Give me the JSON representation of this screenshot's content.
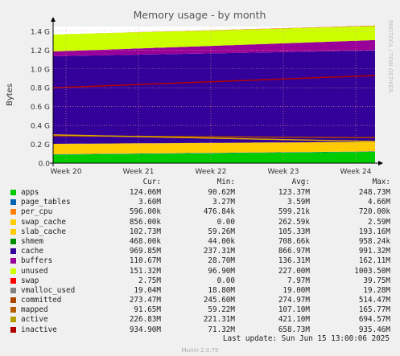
{
  "chart_data": {
    "type": "area",
    "title": "Memory usage - by month",
    "ylabel": "Bytes",
    "watermark": "RRDTOOL / TOBI OETIKER",
    "x": [
      "Week 20",
      "Week 21",
      "Week 22",
      "Week 23",
      "Week 24"
    ],
    "yticks": [
      "0.0",
      "0.2 G",
      "0.4 G",
      "0.6 G",
      "0.8 G",
      "1.0 G",
      "1.2 G",
      "1.4 G"
    ],
    "ylim": [
      0,
      1.45
    ],
    "grid": true,
    "unit": "G",
    "stacked_series": [
      {
        "name": "apps",
        "color": "#00cc00",
        "start": 0.09,
        "end": 0.12
      },
      {
        "name": "page_tables",
        "color": "#0066b3",
        "start": 0.004,
        "end": 0.004
      },
      {
        "name": "per_cpu",
        "color": "#ff8000",
        "start": 0.0006,
        "end": 0.0006
      },
      {
        "name": "swap_cache",
        "color": "#ffcc00",
        "start": 0.0,
        "end": 0.001
      },
      {
        "name": "slab_cache",
        "color": "#ffcc00",
        "start": 0.11,
        "end": 0.1
      },
      {
        "name": "shmem",
        "color": "#008f00",
        "start": 0.0004,
        "end": 0.0005
      },
      {
        "name": "cache",
        "color": "#330099",
        "start": 0.93,
        "end": 0.97
      },
      {
        "name": "buffers",
        "color": "#990099",
        "start": 0.05,
        "end": 0.11
      },
      {
        "name": "unused",
        "color": "#ccff00",
        "start": 0.18,
        "end": 0.15
      },
      {
        "name": "swap",
        "color": "#ff0000",
        "start": 0.0,
        "end": 0.003
      }
    ],
    "line_series": [
      {
        "name": "committed",
        "color": "#aa4400",
        "start": 0.29,
        "end": 0.27
      },
      {
        "name": "active",
        "color": "#d9a600",
        "start": 0.3,
        "end": 0.23
      },
      {
        "name": "inactive",
        "color": "#b00000",
        "start": 0.8,
        "end": 0.93
      }
    ]
  },
  "legend": {
    "headers": {
      "cur": "Cur:",
      "min": "Min:",
      "avg": "Avg:",
      "max": "Max:"
    },
    "rows": [
      {
        "name": "apps",
        "color": "#00cc00",
        "cur": "124.06M",
        "min": "90.62M",
        "avg": "123.37M",
        "max": "248.73M"
      },
      {
        "name": "page_tables",
        "color": "#0066b3",
        "cur": "3.60M",
        "min": "3.27M",
        "avg": "3.59M",
        "max": "4.66M"
      },
      {
        "name": "per_cpu",
        "color": "#ff8000",
        "cur": "596.00k",
        "min": "476.84k",
        "avg": "599.21k",
        "max": "720.00k"
      },
      {
        "name": "swap_cache",
        "color": "#ffcc00",
        "cur": "856.00k",
        "min": "0.00",
        "avg": "262.59k",
        "max": "2.59M"
      },
      {
        "name": "slab_cache",
        "color": "#ffcc00",
        "cur": "102.73M",
        "min": "59.26M",
        "avg": "105.33M",
        "max": "193.16M"
      },
      {
        "name": "shmem",
        "color": "#008f00",
        "cur": "468.00k",
        "min": "44.00k",
        "avg": "708.66k",
        "max": "958.24k"
      },
      {
        "name": "cache",
        "color": "#330099",
        "cur": "969.85M",
        "min": "237.31M",
        "avg": "866.97M",
        "max": "991.32M"
      },
      {
        "name": "buffers",
        "color": "#990099",
        "cur": "110.67M",
        "min": "28.70M",
        "avg": "136.31M",
        "max": "162.11M"
      },
      {
        "name": "unused",
        "color": "#ccff00",
        "cur": "151.32M",
        "min": "96.90M",
        "avg": "227.00M",
        "max": "1003.50M"
      },
      {
        "name": "swap",
        "color": "#ff0000",
        "cur": "2.75M",
        "min": "0.00",
        "avg": "7.97M",
        "max": "39.75M"
      },
      {
        "name": "vmalloc_used",
        "color": "#808080",
        "cur": "19.04M",
        "min": "18.80M",
        "avg": "19.00M",
        "max": "19.28M"
      },
      {
        "name": "committed",
        "color": "#aa4400",
        "cur": "273.47M",
        "min": "245.60M",
        "avg": "274.97M",
        "max": "514.47M"
      },
      {
        "name": "mapped",
        "color": "#b35c00",
        "cur": "91.65M",
        "min": "59.22M",
        "avg": "107.10M",
        "max": "165.77M"
      },
      {
        "name": "active",
        "color": "#b3a000",
        "cur": "226.83M",
        "min": "221.31M",
        "avg": "421.10M",
        "max": "694.57M"
      },
      {
        "name": "inactive",
        "color": "#b00000",
        "cur": "934.90M",
        "min": "71.32M",
        "avg": "658.73M",
        "max": "935.46M"
      }
    ]
  },
  "footer": {
    "last_update": "Last update: Sun Jun 15 13:00:06 2025",
    "version": "Munin 2.0.75"
  }
}
